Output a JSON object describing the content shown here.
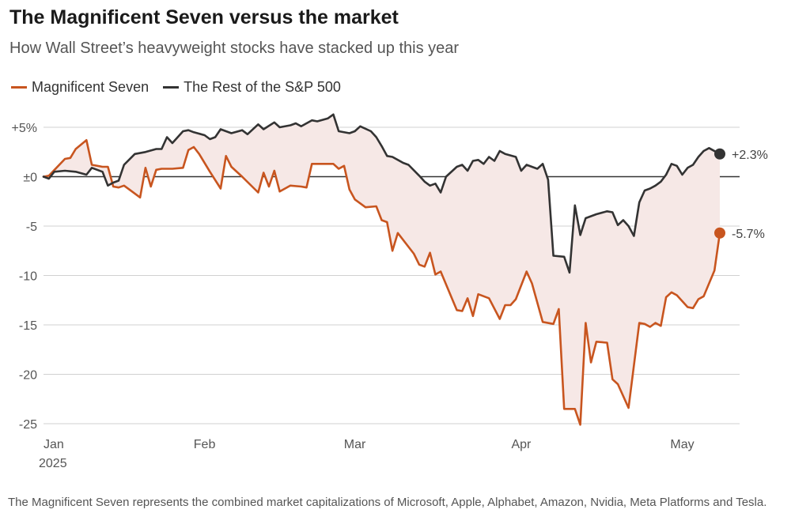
{
  "colors": {
    "mag7": "#c8551f",
    "rest": "#333333",
    "fill": "#f6e8e6",
    "grid": "#d0d0d0",
    "zero": "#333333"
  },
  "header": {
    "title": "The Magnificent Seven versus the market",
    "subtitle": "How Wall Street’s heavyweight stocks have stacked up this year"
  },
  "footnote": "The Magnificent Seven represents the combined market capitalizations of Microsoft, Apple, Alphabet, Amazon, Nvidia, Meta Platforms and Tesla.",
  "chart_data": {
    "type": "line",
    "title": "The Magnificent Seven versus the market",
    "subtitle": "How Wall Street’s heavyweight stocks have stacked up this year",
    "ylim": [
      -25,
      5
    ],
    "y_ticks": [
      5,
      0,
      -5,
      -10,
      -15,
      -20,
      -25
    ],
    "y_tick_labels": [
      "+5%",
      "±0",
      "-5",
      "-10",
      "-15",
      "-20",
      "-25"
    ],
    "x_tick_labels": [
      "Jan",
      "Feb",
      "Mar",
      "Apr",
      "May"
    ],
    "x_tick_dates": [
      "2025-01-02",
      "2025-02-01",
      "2025-03-01",
      "2025-04-01",
      "2025-05-01"
    ],
    "year_label": "2025",
    "legend_position": "top-left",
    "grid": true,
    "series": [
      {
        "name": "Magnificent Seven",
        "end_label": "-5.7%",
        "points": [
          [
            "2025-01-02",
            0.0
          ],
          [
            "2025-01-03",
            0.1
          ],
          [
            "2025-01-06",
            1.8
          ],
          [
            "2025-01-07",
            1.9
          ],
          [
            "2025-01-08",
            2.8
          ],
          [
            "2025-01-10",
            3.7
          ],
          [
            "2025-01-11",
            1.2
          ],
          [
            "2025-01-13",
            1.0
          ],
          [
            "2025-01-14",
            1.0
          ],
          [
            "2025-01-15",
            -1.0
          ],
          [
            "2025-01-16",
            -1.1
          ],
          [
            "2025-01-17",
            -0.9
          ],
          [
            "2025-01-18",
            -1.3
          ],
          [
            "2025-01-20",
            -2.1
          ],
          [
            "2025-01-21",
            0.9
          ],
          [
            "2025-01-22",
            -1.0
          ],
          [
            "2025-01-23",
            0.7
          ],
          [
            "2025-01-24",
            0.8
          ],
          [
            "2025-01-26",
            0.8
          ],
          [
            "2025-01-28",
            0.9
          ],
          [
            "2025-01-29",
            2.7
          ],
          [
            "2025-01-30",
            3.0
          ],
          [
            "2025-01-31",
            2.3
          ],
          [
            "2025-02-02",
            0.5
          ],
          [
            "2025-02-04",
            -1.2
          ],
          [
            "2025-02-05",
            2.1
          ],
          [
            "2025-02-06",
            1.0
          ],
          [
            "2025-02-08",
            0.0
          ],
          [
            "2025-02-11",
            -1.6
          ],
          [
            "2025-02-12",
            0.4
          ],
          [
            "2025-02-13",
            -1.0
          ],
          [
            "2025-02-14",
            0.6
          ],
          [
            "2025-02-15",
            -1.5
          ],
          [
            "2025-02-17",
            -0.9
          ],
          [
            "2025-02-19",
            -1.0
          ],
          [
            "2025-02-20",
            -1.1
          ],
          [
            "2025-02-21",
            1.3
          ],
          [
            "2025-02-23",
            1.3
          ],
          [
            "2025-02-25",
            1.3
          ],
          [
            "2025-02-26",
            0.8
          ],
          [
            "2025-02-27",
            1.1
          ],
          [
            "2025-02-28",
            -1.3
          ],
          [
            "2025-03-01",
            -2.3
          ],
          [
            "2025-03-03",
            -3.1
          ],
          [
            "2025-03-05",
            -3.0
          ],
          [
            "2025-03-06",
            -4.4
          ],
          [
            "2025-03-07",
            -4.6
          ],
          [
            "2025-03-08",
            -7.5
          ],
          [
            "2025-03-09",
            -5.7
          ],
          [
            "2025-03-12",
            -7.8
          ],
          [
            "2025-03-13",
            -8.9
          ],
          [
            "2025-03-14",
            -9.1
          ],
          [
            "2025-03-15",
            -7.7
          ],
          [
            "2025-03-16",
            -9.9
          ],
          [
            "2025-03-17",
            -9.6
          ],
          [
            "2025-03-20",
            -13.5
          ],
          [
            "2025-03-21",
            -13.6
          ],
          [
            "2025-03-22",
            -12.3
          ],
          [
            "2025-03-23",
            -14.1
          ],
          [
            "2025-03-24",
            -11.9
          ],
          [
            "2025-03-26",
            -12.3
          ],
          [
            "2025-03-28",
            -14.4
          ],
          [
            "2025-03-29",
            -13.0
          ],
          [
            "2025-03-30",
            -13.0
          ],
          [
            "2025-03-31",
            -12.4
          ],
          [
            "2025-04-02",
            -9.6
          ],
          [
            "2025-04-03",
            -10.8
          ],
          [
            "2025-04-05",
            -14.7
          ],
          [
            "2025-04-07",
            -14.9
          ],
          [
            "2025-04-08",
            -13.4
          ],
          [
            "2025-04-09",
            -23.5
          ],
          [
            "2025-04-11",
            -23.5
          ],
          [
            "2025-04-12",
            -25.1
          ],
          [
            "2025-04-13",
            -14.8
          ],
          [
            "2025-04-14",
            -18.8
          ],
          [
            "2025-04-15",
            -16.7
          ],
          [
            "2025-04-17",
            -16.8
          ],
          [
            "2025-04-18",
            -20.5
          ],
          [
            "2025-04-19",
            -21.0
          ],
          [
            "2025-04-21",
            -23.4
          ],
          [
            "2025-04-23",
            -14.8
          ],
          [
            "2025-04-24",
            -14.9
          ],
          [
            "2025-04-25",
            -15.2
          ],
          [
            "2025-04-26",
            -14.8
          ],
          [
            "2025-04-27",
            -15.1
          ],
          [
            "2025-04-28",
            -12.2
          ],
          [
            "2025-04-29",
            -11.7
          ],
          [
            "2025-04-30",
            -12.0
          ],
          [
            "2025-05-02",
            -13.2
          ],
          [
            "2025-05-03",
            -13.3
          ],
          [
            "2025-05-04",
            -12.4
          ],
          [
            "2025-05-05",
            -12.1
          ],
          [
            "2025-05-07",
            -9.5
          ],
          [
            "2025-05-08",
            -5.7
          ]
        ]
      },
      {
        "name": "The Rest of the S&P 500",
        "end_label": "+2.3%",
        "points": [
          [
            "2025-01-02",
            0.0
          ],
          [
            "2025-01-03",
            -0.2
          ],
          [
            "2025-01-04",
            0.5
          ],
          [
            "2025-01-06",
            0.6
          ],
          [
            "2025-01-08",
            0.5
          ],
          [
            "2025-01-10",
            0.2
          ],
          [
            "2025-01-11",
            0.9
          ],
          [
            "2025-01-13",
            0.5
          ],
          [
            "2025-01-14",
            -0.9
          ],
          [
            "2025-01-15",
            -0.6
          ],
          [
            "2025-01-16",
            -0.4
          ],
          [
            "2025-01-17",
            1.2
          ],
          [
            "2025-01-19",
            2.3
          ],
          [
            "2025-01-21",
            2.5
          ],
          [
            "2025-01-23",
            2.8
          ],
          [
            "2025-01-24",
            2.8
          ],
          [
            "2025-01-25",
            4.0
          ],
          [
            "2025-01-26",
            3.4
          ],
          [
            "2025-01-28",
            4.6
          ],
          [
            "2025-01-29",
            4.7
          ],
          [
            "2025-01-30",
            4.5
          ],
          [
            "2025-02-01",
            4.2
          ],
          [
            "2025-02-02",
            3.8
          ],
          [
            "2025-02-03",
            4.0
          ],
          [
            "2025-02-04",
            4.8
          ],
          [
            "2025-02-06",
            4.4
          ],
          [
            "2025-02-08",
            4.7
          ],
          [
            "2025-02-09",
            4.3
          ],
          [
            "2025-02-11",
            5.3
          ],
          [
            "2025-02-12",
            4.8
          ],
          [
            "2025-02-14",
            5.5
          ],
          [
            "2025-02-15",
            5.0
          ],
          [
            "2025-02-17",
            5.2
          ],
          [
            "2025-02-18",
            5.4
          ],
          [
            "2025-02-19",
            5.1
          ],
          [
            "2025-02-21",
            5.7
          ],
          [
            "2025-02-22",
            5.6
          ],
          [
            "2025-02-24",
            5.9
          ],
          [
            "2025-02-25",
            6.3
          ],
          [
            "2025-02-26",
            4.6
          ],
          [
            "2025-02-28",
            4.4
          ],
          [
            "2025-03-01",
            4.6
          ],
          [
            "2025-03-02",
            5.1
          ],
          [
            "2025-03-04",
            4.6
          ],
          [
            "2025-03-05",
            4.0
          ],
          [
            "2025-03-06",
            3.1
          ],
          [
            "2025-03-07",
            2.1
          ],
          [
            "2025-03-08",
            2.0
          ],
          [
            "2025-03-10",
            1.4
          ],
          [
            "2025-03-11",
            1.2
          ],
          [
            "2025-03-13",
            0.1
          ],
          [
            "2025-03-14",
            -0.5
          ],
          [
            "2025-03-15",
            -0.9
          ],
          [
            "2025-03-16",
            -0.7
          ],
          [
            "2025-03-17",
            -1.6
          ],
          [
            "2025-03-18",
            0.0
          ],
          [
            "2025-03-20",
            1.0
          ],
          [
            "2025-03-21",
            1.2
          ],
          [
            "2025-03-22",
            0.6
          ],
          [
            "2025-03-23",
            1.6
          ],
          [
            "2025-03-24",
            1.7
          ],
          [
            "2025-03-25",
            1.3
          ],
          [
            "2025-03-26",
            2.0
          ],
          [
            "2025-03-27",
            1.6
          ],
          [
            "2025-03-28",
            2.6
          ],
          [
            "2025-03-29",
            2.3
          ],
          [
            "2025-03-31",
            2.0
          ],
          [
            "2025-04-01",
            0.6
          ],
          [
            "2025-04-02",
            1.2
          ],
          [
            "2025-04-04",
            0.8
          ],
          [
            "2025-04-05",
            1.3
          ],
          [
            "2025-04-06",
            -0.3
          ],
          [
            "2025-04-07",
            -8.0
          ],
          [
            "2025-04-09",
            -8.1
          ],
          [
            "2025-04-10",
            -9.7
          ],
          [
            "2025-04-11",
            -2.9
          ],
          [
            "2025-04-12",
            -5.9
          ],
          [
            "2025-04-13",
            -4.2
          ],
          [
            "2025-04-15",
            -3.8
          ],
          [
            "2025-04-17",
            -3.5
          ],
          [
            "2025-04-18",
            -3.6
          ],
          [
            "2025-04-19",
            -4.9
          ],
          [
            "2025-04-20",
            -4.4
          ],
          [
            "2025-04-21",
            -5.0
          ],
          [
            "2025-04-22",
            -6.0
          ],
          [
            "2025-04-23",
            -2.6
          ],
          [
            "2025-04-24",
            -1.4
          ],
          [
            "2025-04-25",
            -1.2
          ],
          [
            "2025-04-26",
            -0.9
          ],
          [
            "2025-04-27",
            -0.5
          ],
          [
            "2025-04-28",
            0.2
          ],
          [
            "2025-04-29",
            1.3
          ],
          [
            "2025-04-30",
            1.1
          ],
          [
            "2025-05-01",
            0.2
          ],
          [
            "2025-05-02",
            0.9
          ],
          [
            "2025-05-03",
            1.2
          ],
          [
            "2025-05-04",
            2.0
          ],
          [
            "2025-05-05",
            2.6
          ],
          [
            "2025-05-06",
            2.9
          ],
          [
            "2025-05-08",
            2.3
          ]
        ]
      }
    ]
  }
}
